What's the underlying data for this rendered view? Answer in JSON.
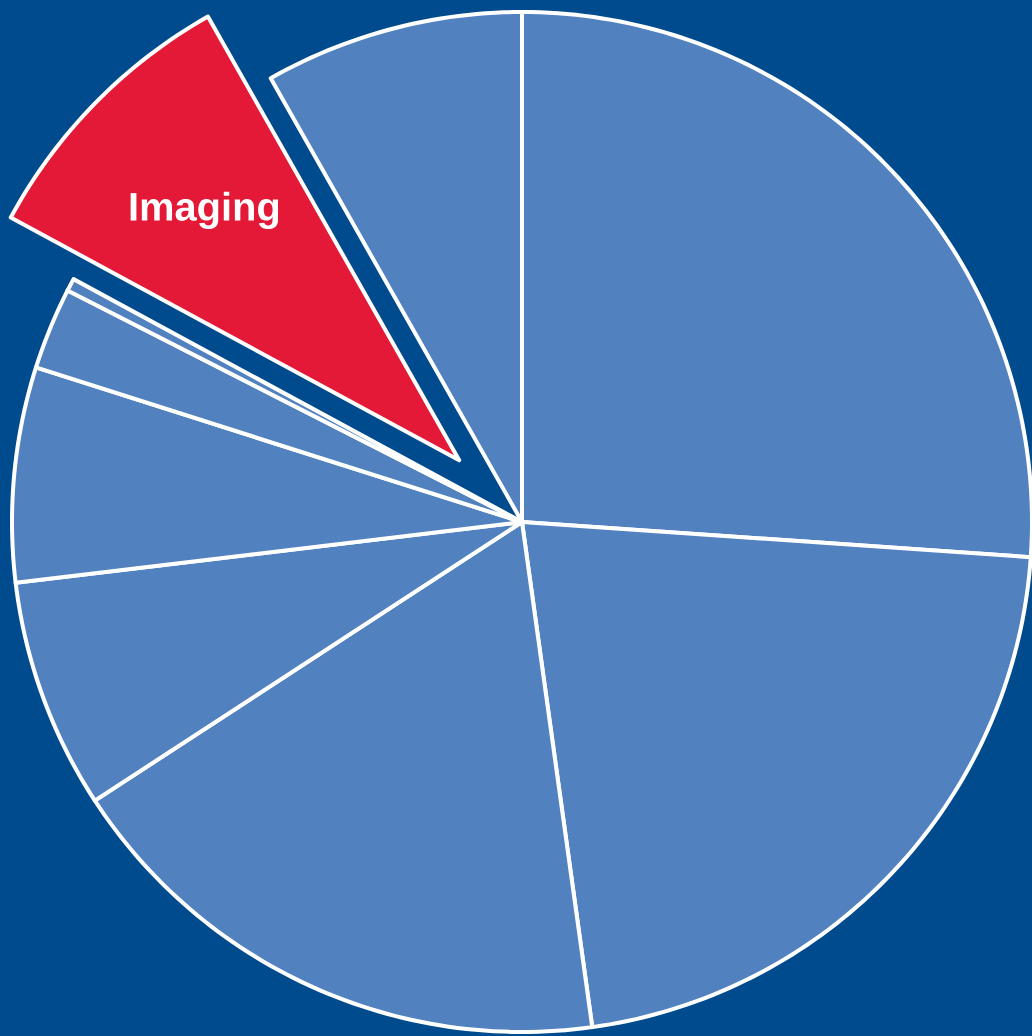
{
  "chart_data": {
    "type": "pie",
    "categories": [
      null,
      null,
      null,
      null,
      null,
      null,
      null,
      "Imaging",
      null
    ],
    "values": [
      26.1,
      21.7,
      18.0,
      7.3,
      6.8,
      2.6,
      0.4,
      8.9,
      8.2
    ],
    "colors": [
      "#5182bf",
      "#5182bf",
      "#5182bf",
      "#5182bf",
      "#5182bf",
      "#5182bf",
      "#5182bf",
      "#e31937",
      "#5182bf"
    ]
  }
}
